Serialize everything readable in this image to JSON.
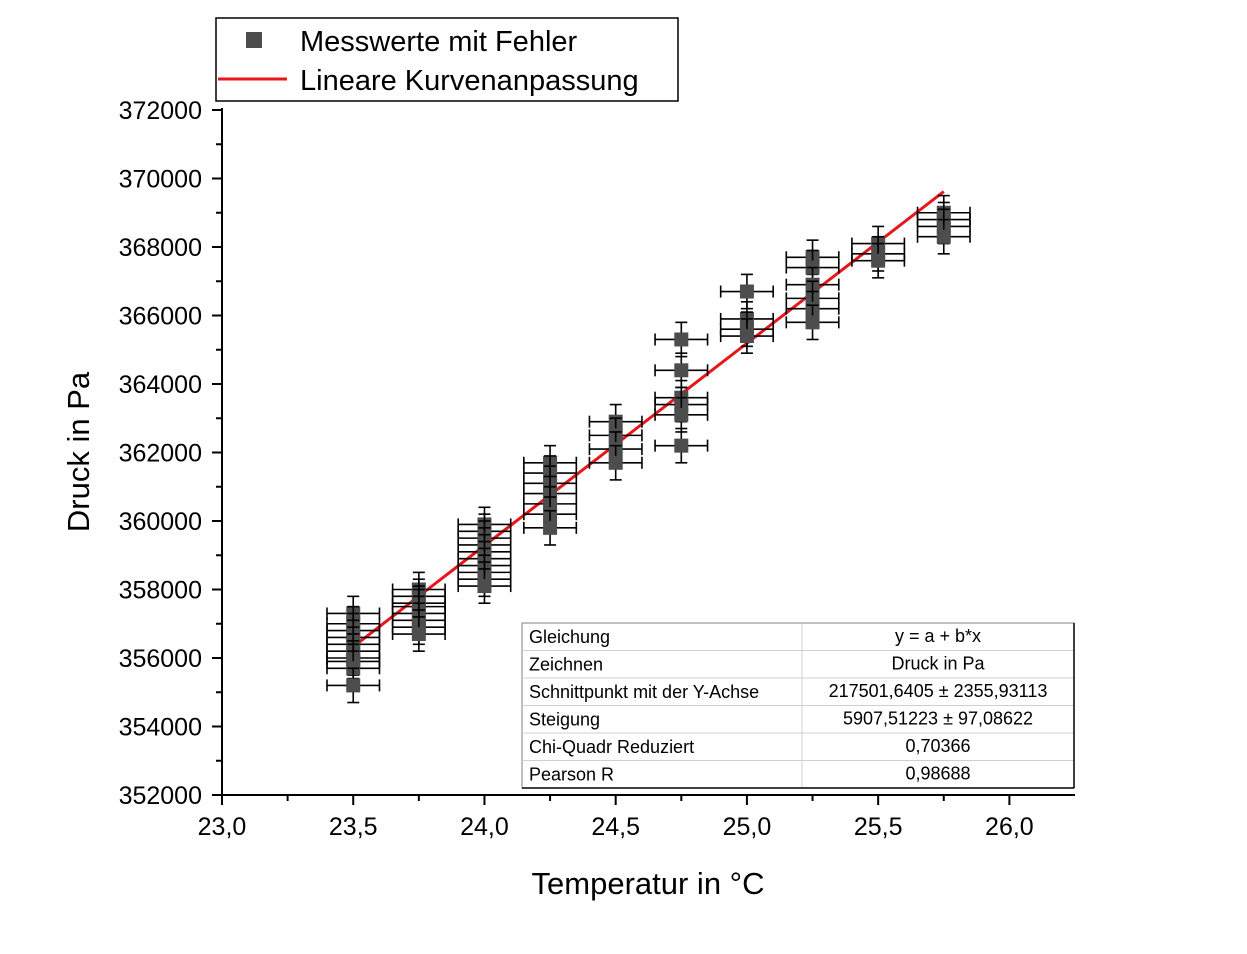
{
  "colors": {
    "marker": "#4d4d4d",
    "error_bar": "#000000",
    "fit_line": "#e8161b",
    "axis": "#000000"
  },
  "chart_data": {
    "type": "scatter",
    "xlabel": "Temperatur in °C",
    "ylabel": "Druck in Pa",
    "xlim": [
      23.0,
      26.25
    ],
    "ylim": [
      352000,
      372000
    ],
    "x_ticks": [
      "23,0",
      "23,5",
      "24,0",
      "24,5",
      "25,0",
      "25,5",
      "26,0"
    ],
    "x_tick_values": [
      23.0,
      23.5,
      24.0,
      24.5,
      25.0,
      25.5,
      26.0
    ],
    "y_ticks": [
      "352000",
      "354000",
      "356000",
      "358000",
      "360000",
      "362000",
      "364000",
      "366000",
      "368000",
      "370000",
      "372000"
    ],
    "y_tick_values": [
      352000,
      354000,
      356000,
      358000,
      360000,
      362000,
      364000,
      366000,
      368000,
      370000,
      372000
    ],
    "legend": {
      "position": "top-left",
      "entries": [
        "Messwerte mit Fehler",
        "Lineare Kurvenanpassung"
      ]
    },
    "x_error": 0.1,
    "y_error": 500,
    "series": [
      {
        "points": [
          [
            23.5,
            357300
          ],
          [
            23.5,
            357000
          ],
          [
            23.5,
            356800
          ],
          [
            23.5,
            356600
          ],
          [
            23.5,
            356400
          ],
          [
            23.5,
            356200
          ],
          [
            23.5,
            356000
          ],
          [
            23.5,
            355900
          ],
          [
            23.5,
            355700
          ],
          [
            23.5,
            355200
          ],
          [
            23.75,
            358000
          ],
          [
            23.75,
            357800
          ],
          [
            23.75,
            357600
          ],
          [
            23.75,
            357500
          ],
          [
            23.75,
            357300
          ],
          [
            23.75,
            357100
          ],
          [
            23.75,
            356900
          ],
          [
            23.75,
            356700
          ],
          [
            24.0,
            359900
          ],
          [
            24.0,
            359700
          ],
          [
            24.0,
            359500
          ],
          [
            24.0,
            359300
          ],
          [
            24.0,
            359100
          ],
          [
            24.0,
            358900
          ],
          [
            24.0,
            358700
          ],
          [
            24.0,
            358500
          ],
          [
            24.0,
            358300
          ],
          [
            24.0,
            358100
          ],
          [
            24.25,
            361700
          ],
          [
            24.25,
            361400
          ],
          [
            24.25,
            361100
          ],
          [
            24.25,
            360800
          ],
          [
            24.25,
            360500
          ],
          [
            24.25,
            360200
          ],
          [
            24.25,
            359800
          ],
          [
            24.5,
            362900
          ],
          [
            24.5,
            362500
          ],
          [
            24.5,
            362100
          ],
          [
            24.5,
            361700
          ],
          [
            24.75,
            365300
          ],
          [
            24.75,
            364400
          ],
          [
            24.75,
            363600
          ],
          [
            24.75,
            363400
          ],
          [
            24.75,
            363100
          ],
          [
            24.75,
            362200
          ],
          [
            25.0,
            366700
          ],
          [
            25.0,
            365900
          ],
          [
            25.0,
            365600
          ],
          [
            25.0,
            365400
          ],
          [
            25.25,
            367700
          ],
          [
            25.25,
            367400
          ],
          [
            25.25,
            366900
          ],
          [
            25.25,
            366500
          ],
          [
            25.25,
            366200
          ],
          [
            25.25,
            365800
          ],
          [
            25.5,
            368100
          ],
          [
            25.5,
            367800
          ],
          [
            25.5,
            367600
          ],
          [
            25.75,
            369000
          ],
          [
            25.75,
            368800
          ],
          [
            25.75,
            368600
          ],
          [
            25.75,
            368300
          ]
        ]
      }
    ],
    "fit": {
      "x_start": 23.5,
      "x_end": 25.75,
      "intercept": 217501.6405,
      "slope": 5907.51223
    },
    "table": {
      "rows": [
        [
          "Gleichung",
          "y = a + b*x"
        ],
        [
          "Zeichnen",
          "Druck in Pa"
        ],
        [
          "Schnittpunkt mit der Y-Achse",
          "217501,6405 ± 2355,93113"
        ],
        [
          "Steigung",
          "5907,51223 ± 97,08622"
        ],
        [
          "Chi-Quadr Reduziert",
          "0,70366"
        ],
        [
          "Pearson R",
          "0,98688"
        ]
      ]
    }
  }
}
